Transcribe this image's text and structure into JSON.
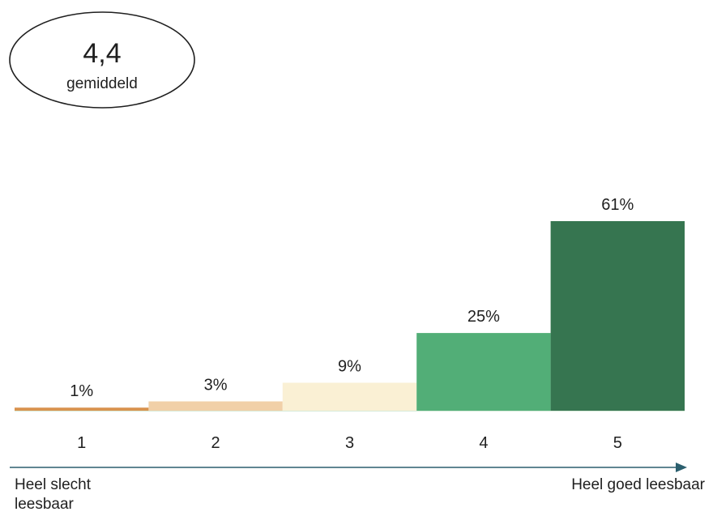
{
  "summary": {
    "value": "4,4",
    "label": "gemiddeld"
  },
  "chart_data": {
    "type": "bar",
    "categories": [
      "1",
      "2",
      "3",
      "4",
      "5"
    ],
    "values": [
      1,
      3,
      9,
      25,
      61
    ],
    "data_labels": [
      "1%",
      "3%",
      "9%",
      "25%",
      "61%"
    ],
    "colors": [
      "#d9934f",
      "#f1d0a8",
      "#faf0d4",
      "#52ae77",
      "#367550"
    ],
    "ylim": [
      0,
      61
    ],
    "grid": false,
    "legend": "none"
  },
  "scale": {
    "left_label_line1": "Heel slecht",
    "left_label_line2": "leesbaar",
    "right_label": "Heel goed leesbaar"
  },
  "axis_color": "#2b5f6e"
}
